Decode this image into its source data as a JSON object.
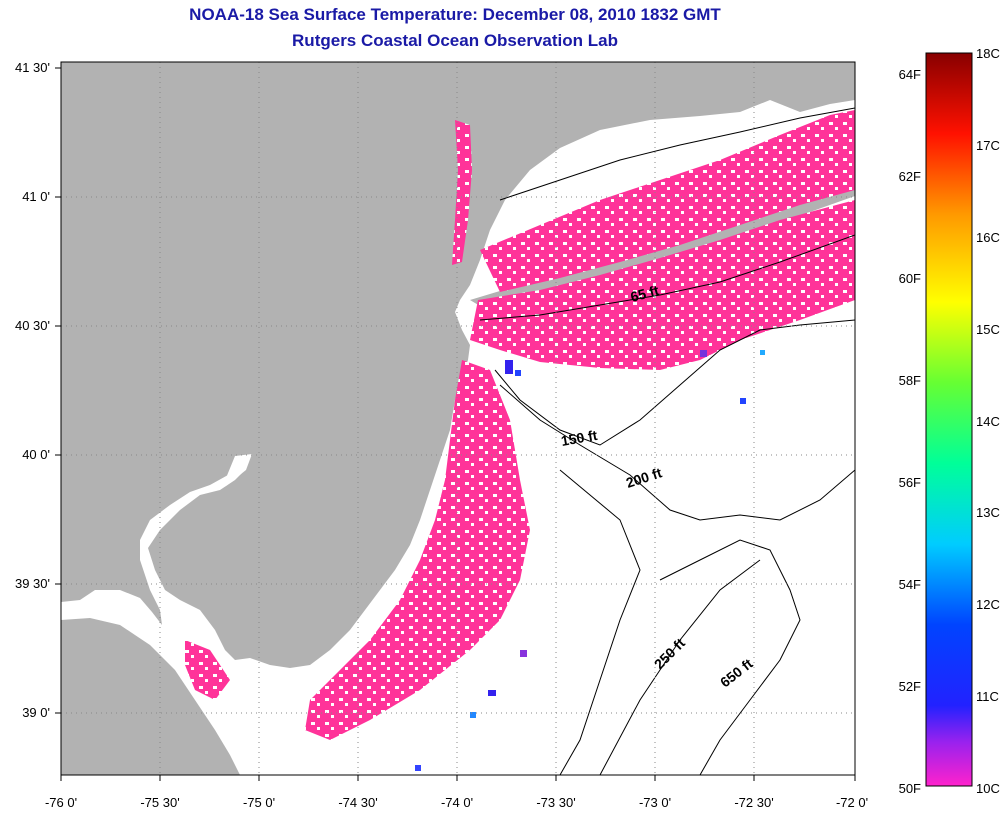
{
  "title": "NOAA-18 Sea Surface Temperature:  December 08, 2010 1832 GMT",
  "subtitle": "Rutgers Coastal Ocean Observation Lab",
  "map": {
    "lon_ticks": [
      "-76 0'",
      "-75 30'",
      "-75 0'",
      "-74 30'",
      "-74 0'",
      "-73 30'",
      "-73 0'",
      "-72 30'",
      "-72 0'"
    ],
    "lat_ticks": [
      "41 30'",
      "41 0'",
      "40 30'",
      "40 0'",
      "39 30'",
      "39 0'"
    ],
    "contour_labels": [
      "65 ft",
      "150 ft",
      "200 ft",
      "250 ft",
      "650 ft"
    ],
    "colors": {
      "land": "#b2b2b2",
      "cloud_mask": "#ffffff",
      "cold_water": "#ff3399",
      "grid": "#888888"
    }
  },
  "colorbar": {
    "fahrenheit_labels": [
      "64F",
      "62F",
      "60F",
      "58F",
      "56F",
      "54F",
      "52F",
      "50F"
    ],
    "celsius_labels": [
      "18C",
      "17C",
      "16C",
      "15C",
      "14C",
      "13C",
      "12C",
      "11C",
      "10C"
    ],
    "range_c": [
      10,
      18
    ]
  }
}
